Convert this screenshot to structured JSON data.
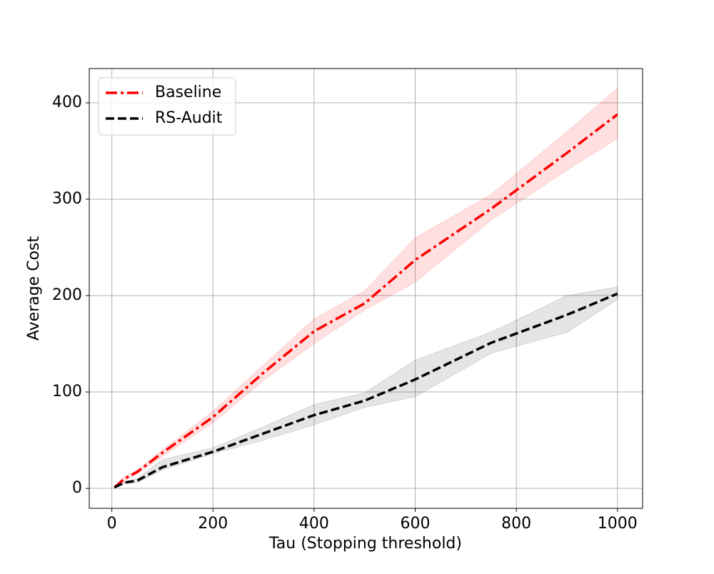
{
  "chart_data": {
    "type": "line",
    "xlabel": "Tau (Stopping threshold)",
    "ylabel": "Average Cost",
    "x": [
      5,
      25,
      50,
      100,
      200,
      300,
      400,
      500,
      600,
      750,
      900,
      1000
    ],
    "series": [
      {
        "name": "Baseline",
        "color": "#ff0000",
        "linestyle": "dashdot",
        "values": [
          1,
          10,
          17,
          37,
          74,
          120,
          163,
          192,
          237,
          290,
          348,
          388
        ],
        "lower": [
          0,
          8,
          15,
          33,
          68,
          112,
          150,
          185,
          214,
          278,
          330,
          363
        ],
        "upper": [
          2,
          12,
          19,
          40,
          80,
          128,
          176,
          205,
          260,
          305,
          370,
          415
        ]
      },
      {
        "name": "RS-Audit",
        "color": "#000000",
        "linestyle": "dashed",
        "values": [
          1,
          6,
          8,
          22,
          38,
          57,
          76,
          91,
          113,
          151,
          180,
          202
        ],
        "lower": [
          0,
          5,
          6,
          19,
          36,
          50,
          66,
          84,
          95,
          140,
          162,
          196
        ],
        "upper": [
          2,
          7,
          10,
          30,
          42,
          64,
          87,
          99,
          133,
          162,
          200,
          209
        ]
      }
    ],
    "xlim": [
      -44.75,
      1049.75
    ],
    "xticks": [
      0,
      200,
      400,
      600,
      800,
      1000
    ],
    "ylim": [
      -20.7,
      435.6
    ],
    "yticks": [
      0,
      100,
      200,
      300,
      400
    ],
    "grid": true,
    "legend": "upper left"
  }
}
